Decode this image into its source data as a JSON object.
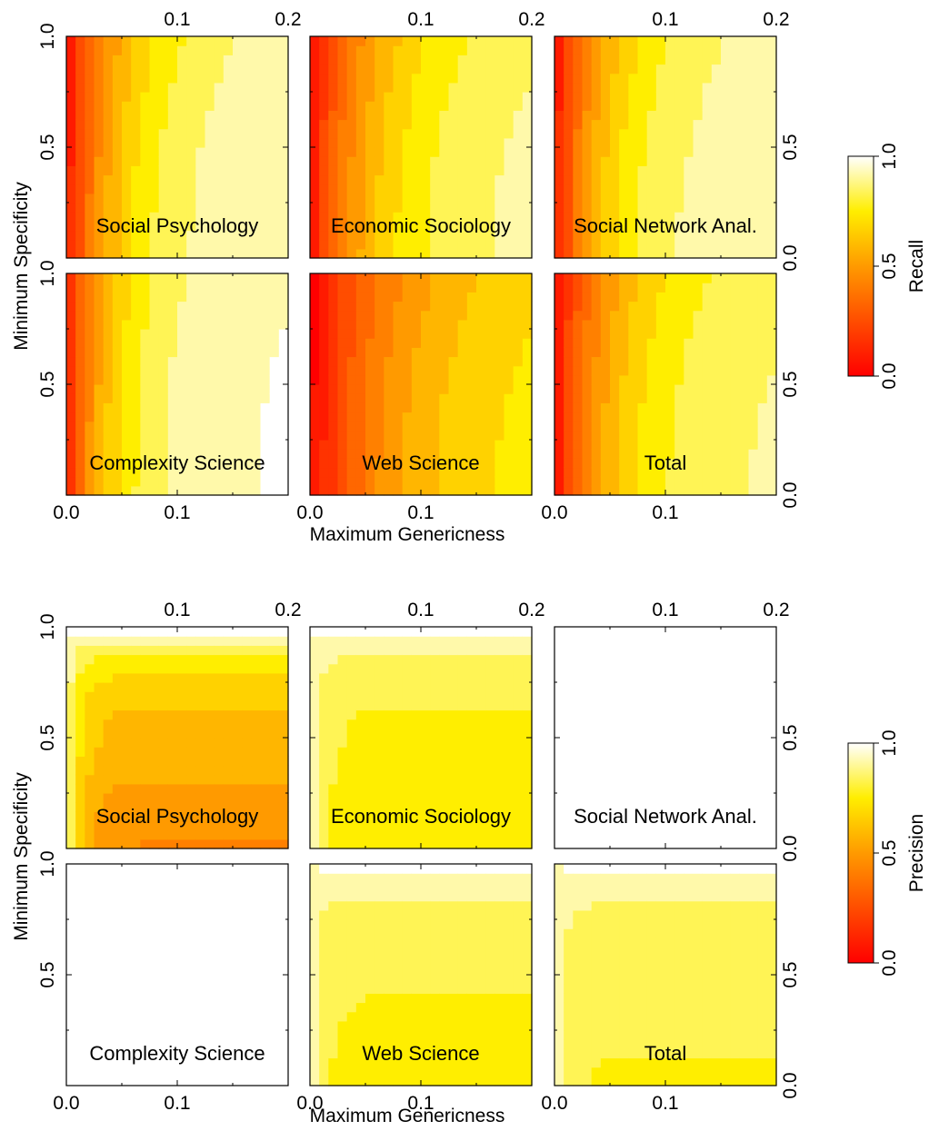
{
  "chart_data": [
    {
      "type": "heatmap",
      "metric": "Recall",
      "xlabel": "Maximum Genericness",
      "ylabel": "Minimum Specificity",
      "xlim": [
        0.0,
        0.2
      ],
      "ylim": [
        0.0,
        1.0
      ],
      "x_ticks_top": [
        "0.1",
        "0.2"
      ],
      "x_ticks_bottom": [
        "0.0",
        "0.1"
      ],
      "y_ticks_left": [
        "1.0",
        "0.5"
      ],
      "y_ticks_right": [
        "0.5",
        "0.0"
      ],
      "colorbar": {
        "label": "Recall",
        "ticks": [
          "0.0",
          "0.5",
          "1.0"
        ],
        "range": [
          0.0,
          1.0
        ]
      },
      "panels": [
        {
          "label": "Social Psychology",
          "plateau": 0.95,
          "min": 0.05,
          "xscale": 0.045,
          "yboost": 0.35
        },
        {
          "label": "Economic Sociology",
          "plateau": 0.92,
          "min": 0.05,
          "xscale": 0.055,
          "yboost": 0.35
        },
        {
          "label": "Social Network Anal.",
          "plateau": 0.93,
          "min": 0.05,
          "xscale": 0.04,
          "yboost": 0.4
        },
        {
          "label": "Complexity Science",
          "plateau": 0.97,
          "min": 0.12,
          "xscale": 0.04,
          "yboost": 0.25
        },
        {
          "label": "Web Science",
          "plateau": 0.78,
          "min": 0.0,
          "xscale": 0.07,
          "yboost": 0.35
        },
        {
          "label": "Total",
          "plateau": 0.9,
          "min": 0.05,
          "xscale": 0.05,
          "yboost": 0.35
        }
      ]
    },
    {
      "type": "heatmap",
      "metric": "Precision",
      "xlabel": "Maximum Genericness",
      "ylabel": "Minimum Specificity",
      "xlim": [
        0.0,
        0.2
      ],
      "ylim": [
        0.0,
        1.0
      ],
      "x_ticks_top": [
        "0.1",
        "0.2"
      ],
      "x_ticks_bottom": [
        "0.0",
        "0.1"
      ],
      "y_ticks_left": [
        "1.0",
        "0.5"
      ],
      "y_ticks_right": [
        "0.5",
        "0.0"
      ],
      "colorbar": {
        "label": "Precision",
        "ticks": [
          "0.0",
          "0.5",
          "1.0"
        ],
        "range": [
          0.0,
          1.0
        ]
      },
      "panels": [
        {
          "label": "Social Psychology",
          "low": 0.45,
          "mid": 0.6,
          "top": 0.95,
          "edge": 0.95
        },
        {
          "label": "Economic Sociology",
          "low": 0.73,
          "mid": 0.78,
          "top": 0.95,
          "edge": 0.95
        },
        {
          "label": "Social Network Anal.",
          "low": 0.96,
          "mid": 0.96,
          "top": 0.98,
          "edge": 0.98
        },
        {
          "label": "Complexity Science",
          "low": 0.97,
          "mid": 0.97,
          "top": 0.98,
          "edge": 0.98
        },
        {
          "label": "Web Science",
          "low": 0.75,
          "mid": 0.8,
          "top": 0.95,
          "edge": 0.93
        },
        {
          "label": "Total",
          "low": 0.78,
          "mid": 0.82,
          "top": 0.95,
          "edge": 0.93
        }
      ]
    }
  ]
}
